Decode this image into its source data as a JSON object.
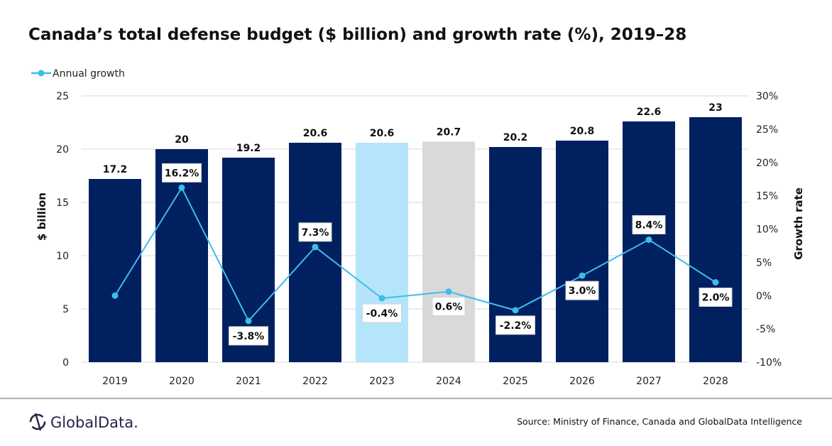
{
  "chart_data": {
    "type": "bar",
    "title": "Canada’s total defense budget ($ billion) and growth rate (%), 2019–28",
    "categories": [
      "2019",
      "2020",
      "2021",
      "2022",
      "2023",
      "2024",
      "2025",
      "2026",
      "2027",
      "2028"
    ],
    "series": [
      {
        "values": [
          17.2,
          20,
          19.2,
          20.6,
          20.6,
          20.7,
          20.2,
          20.8,
          22.6,
          23
        ],
        "axis": "left",
        "type": "bar",
        "value_labels": [
          "17.2",
          "20",
          "19.2",
          "20.6",
          "20.6",
          "20.7",
          "20.2",
          "20.8",
          "22.6",
          "23"
        ]
      },
      {
        "name": "Annual growth",
        "axis": "right",
        "type": "line",
        "values": [
          0,
          16.2,
          -3.8,
          7.3,
          -0.4,
          0.6,
          -2.2,
          3.0,
          8.4,
          2.0
        ],
        "value_labels": [
          "",
          "16.2%",
          "-3.8%",
          "7.3%",
          "-0.4%",
          "0.6%",
          "-2.2%",
          "3.0%",
          "8.4%",
          "2.0%"
        ],
        "label_positions": [
          "none",
          "above",
          "below",
          "above",
          "below",
          "below",
          "below",
          "below",
          "above",
          "below"
        ]
      }
    ],
    "bar_colors": [
      "#002060",
      "#002060",
      "#002060",
      "#002060",
      "#b4e5fa",
      "#d9d9d9",
      "#002060",
      "#002060",
      "#002060",
      "#002060"
    ],
    "line_color": "#3ebcec",
    "ylabel": "$ billion",
    "ylabel_right": "Growth rate",
    "ylim": [
      0,
      25
    ],
    "yticks": [
      "0",
      "5",
      "10",
      "15",
      "20",
      "25"
    ],
    "ylim_right": [
      -10,
      30
    ],
    "yticks_right": [
      "-10%",
      "-5%",
      "0%",
      "5%",
      "10%",
      "15%",
      "20%",
      "25%",
      "30%"
    ],
    "grid": true,
    "legend_position": "top-left"
  },
  "footer": {
    "source": "Source:  Ministry of Finance, Canada and GlobalData Intelligence",
    "logo_text": "GlobalData."
  }
}
